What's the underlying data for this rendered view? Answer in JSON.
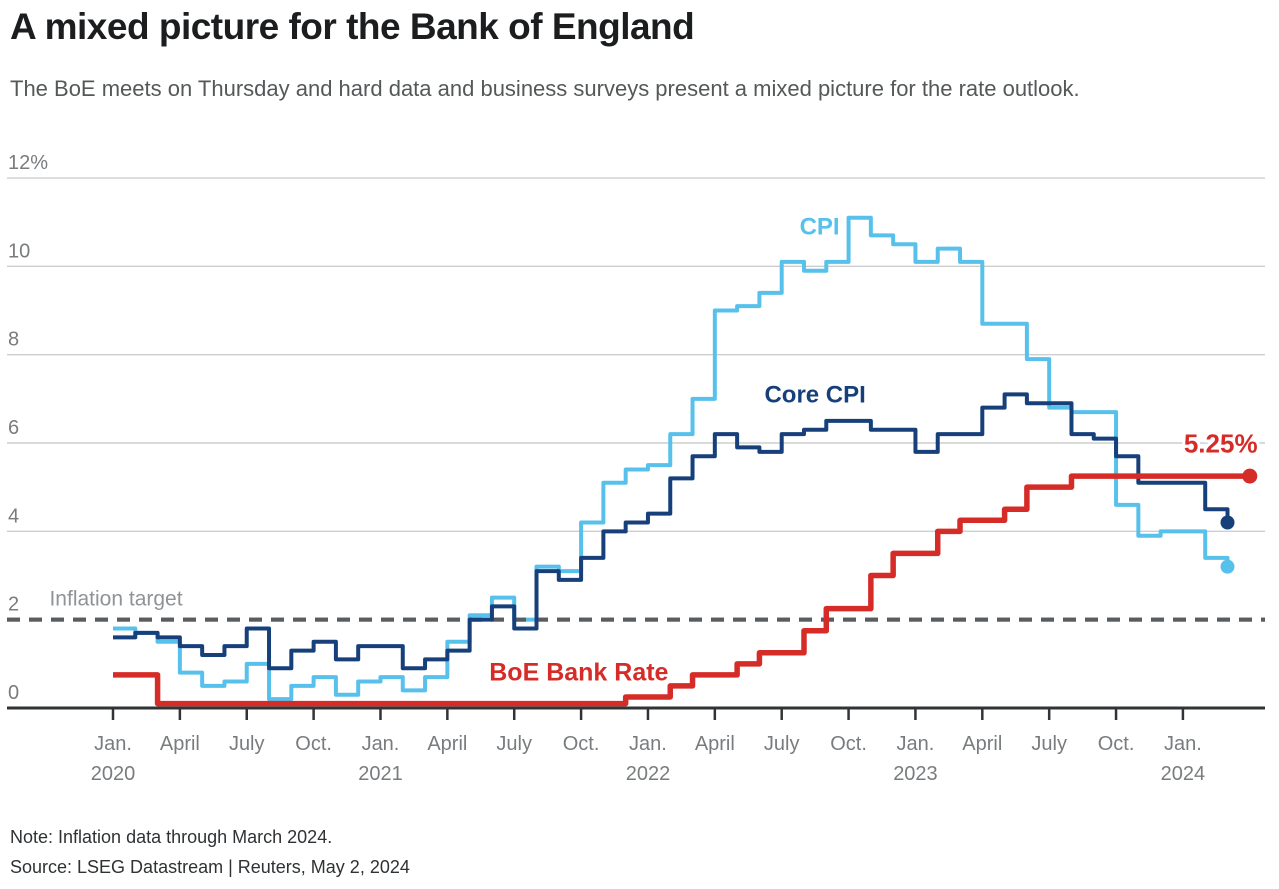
{
  "header": {
    "title": "A mixed picture for the Bank of England",
    "subtitle": "The BoE meets on Thursday and hard data and business surveys present a mixed picture for the rate outlook."
  },
  "footer": {
    "note": "Note: Inflation data through March 2024.",
    "source": "Source: LSEG Datastream | Reuters, May 2, 2024"
  },
  "colors": {
    "cpi": "#57c1ec",
    "core_cpi": "#17407b",
    "bank_rate": "#d62c28",
    "gridline": "#cccecf",
    "target_dash": "#5a5d5f",
    "axis": "#313436",
    "axis_label": "#797c7e",
    "target_label": "#909396"
  },
  "chart_data": {
    "type": "step-line",
    "x_start_month": "2020-01",
    "months_per_step": 1,
    "ylim": [
      0,
      12
    ],
    "grid_values": [
      4,
      6,
      8,
      10,
      12
    ],
    "y_ticks": [
      {
        "v": 12,
        "label": "12%"
      },
      {
        "v": 10,
        "label": "10"
      },
      {
        "v": 8,
        "label": "8"
      },
      {
        "v": 6,
        "label": "6"
      },
      {
        "v": 4,
        "label": "4"
      },
      {
        "v": 2,
        "label": "2"
      },
      {
        "v": 0,
        "label": "0"
      }
    ],
    "x_ticks": [
      {
        "m": 0,
        "month": "Jan.",
        "year": "2020"
      },
      {
        "m": 3,
        "month": "April"
      },
      {
        "m": 6,
        "month": "July"
      },
      {
        "m": 9,
        "month": "Oct."
      },
      {
        "m": 12,
        "month": "Jan.",
        "year": "2021"
      },
      {
        "m": 15,
        "month": "April"
      },
      {
        "m": 18,
        "month": "July"
      },
      {
        "m": 21,
        "month": "Oct."
      },
      {
        "m": 24,
        "month": "Jan.",
        "year": "2022"
      },
      {
        "m": 27,
        "month": "April"
      },
      {
        "m": 30,
        "month": "July"
      },
      {
        "m": 33,
        "month": "Oct."
      },
      {
        "m": 36,
        "month": "Jan.",
        "year": "2023"
      },
      {
        "m": 39,
        "month": "April"
      },
      {
        "m": 42,
        "month": "July"
      },
      {
        "m": 45,
        "month": "Oct."
      },
      {
        "m": 48,
        "month": "Jan.",
        "year": "2024"
      }
    ],
    "target": {
      "value": 2,
      "label": "Inflation target",
      "label_x_m": -2.85,
      "label_v": 2.32,
      "label_size": 21
    },
    "series": [
      {
        "id": "cpi",
        "name": "CPI",
        "color": "#57c1ec",
        "stroke_width": 4,
        "dot_radius": 7,
        "label": {
          "text": "CPI",
          "x_m": 31.7,
          "v": 10.72,
          "size": 24,
          "anchor": "middle"
        },
        "values": [
          1.8,
          1.7,
          1.5,
          0.8,
          0.5,
          0.6,
          1.0,
          0.2,
          0.5,
          0.7,
          0.3,
          0.6,
          0.7,
          0.4,
          0.7,
          1.5,
          2.1,
          2.5,
          2.0,
          3.2,
          3.1,
          4.2,
          5.1,
          5.4,
          5.5,
          6.2,
          7.0,
          9.0,
          9.1,
          9.4,
          10.1,
          9.9,
          10.1,
          11.1,
          10.7,
          10.5,
          10.1,
          10.4,
          10.1,
          8.7,
          8.7,
          7.9,
          6.8,
          6.7,
          6.7,
          4.6,
          3.9,
          4.0,
          4.0,
          3.4,
          3.2
        ]
      },
      {
        "id": "core_cpi",
        "name": "Core CPI",
        "color": "#17407b",
        "stroke_width": 4,
        "dot_radius": 7,
        "label": {
          "text": "Core CPI",
          "x_m": 31.5,
          "v": 6.92,
          "size": 24,
          "anchor": "middle"
        },
        "values": [
          1.6,
          1.7,
          1.6,
          1.4,
          1.2,
          1.4,
          1.8,
          0.9,
          1.3,
          1.5,
          1.1,
          1.4,
          1.4,
          0.9,
          1.1,
          1.3,
          2.0,
          2.3,
          1.8,
          3.1,
          2.9,
          3.4,
          4.0,
          4.2,
          4.4,
          5.2,
          5.7,
          6.2,
          5.9,
          5.8,
          6.2,
          6.3,
          6.5,
          6.5,
          6.3,
          6.3,
          5.8,
          6.2,
          6.2,
          6.8,
          7.1,
          6.9,
          6.9,
          6.2,
          6.1,
          5.7,
          5.1,
          5.1,
          5.1,
          4.5,
          4.2
        ]
      },
      {
        "id": "bank_rate",
        "name": "BoE Bank Rate",
        "color": "#d62c28",
        "stroke_width": 5.5,
        "dot_radius": 7.5,
        "label": {
          "text": "BoE Bank Rate",
          "x_m": 20.9,
          "v": 0.62,
          "size": 25,
          "anchor": "middle"
        },
        "end_label": {
          "text": "5.25%",
          "x_m": 51.35,
          "v": 5.78,
          "size": 26,
          "anchor": "end"
        },
        "values": [
          0.75,
          0.75,
          0.1,
          0.1,
          0.1,
          0.1,
          0.1,
          0.1,
          0.1,
          0.1,
          0.1,
          0.1,
          0.1,
          0.1,
          0.1,
          0.1,
          0.1,
          0.1,
          0.1,
          0.1,
          0.1,
          0.1,
          0.1,
          0.25,
          0.25,
          0.5,
          0.75,
          0.75,
          1.0,
          1.25,
          1.25,
          1.75,
          2.25,
          2.25,
          3.0,
          3.5,
          3.5,
          4.0,
          4.25,
          4.25,
          4.5,
          5.0,
          5.0,
          5.25,
          5.25,
          5.25,
          5.25,
          5.25,
          5.25,
          5.25,
          5.25,
          5.25
        ]
      }
    ]
  }
}
